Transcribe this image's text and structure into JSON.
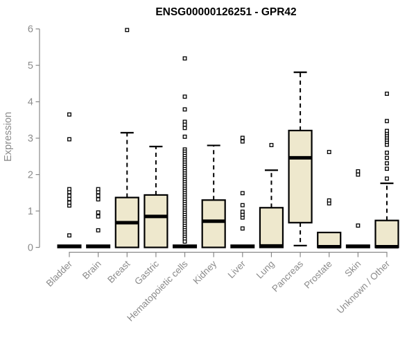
{
  "chart_data": {
    "type": "boxplot",
    "title": "ENSG00000126251 - GPR42",
    "ylabel": "Expression",
    "xlabel": "",
    "ylim": [
      0,
      6
    ],
    "yticks": [
      0,
      1,
      2,
      3,
      4,
      5,
      6
    ],
    "grid": false,
    "legend": "none",
    "colors": {
      "box_fill": "#EEE8CD",
      "box_border": "#000000",
      "median": "#000000",
      "whisker": "#000000",
      "outlier_fill": "#ffffff",
      "outlier_border": "#000000",
      "axis_line": "#888888",
      "axis_text": "#8b8b8b",
      "title_text": "#000000",
      "background": "#ffffff"
    },
    "categories": [
      "Bladder",
      "Brain",
      "Breast",
      "Gastric",
      "Hematopoietic cells",
      "Kidney",
      "Liver",
      "Lung",
      "Pancreas",
      "Prostate",
      "Skin",
      "Unknown / Other"
    ],
    "boxes": [
      {
        "category": "Bladder",
        "q1": 0,
        "median": 0,
        "q3": 0,
        "whisker_low": 0,
        "whisker_high": 0,
        "outliers": [
          0.33,
          1.15,
          1.23,
          1.33,
          1.42,
          1.52,
          1.6,
          2.97,
          3.65
        ]
      },
      {
        "category": "Brain",
        "q1": 0,
        "median": 0,
        "q3": 0,
        "whisker_low": 0,
        "whisker_high": 0,
        "outliers": [
          0.47,
          0.85,
          0.96,
          1.32,
          1.42,
          1.52,
          1.6
        ]
      },
      {
        "category": "Breast",
        "q1": 0,
        "median": 0.68,
        "q3": 1.37,
        "whisker_low": 0,
        "whisker_high": 3.15,
        "outliers": [
          5.97
        ]
      },
      {
        "category": "Gastric",
        "q1": 0,
        "median": 0.85,
        "q3": 1.44,
        "whisker_low": 0,
        "whisker_high": 2.77,
        "outliers": []
      },
      {
        "category": "Hematopoietic cells",
        "q1": 0,
        "median": 0,
        "q3": 0,
        "whisker_low": 0,
        "whisker_high": 0,
        "outliers": [
          5.19,
          4.14,
          3.79,
          3.45,
          3.37,
          3.28,
          3.04,
          2.69,
          2.63,
          2.57,
          2.51,
          2.45,
          2.39,
          2.33,
          2.27,
          2.21,
          2.15,
          2.09,
          2.03,
          1.97,
          1.91,
          1.85,
          1.79,
          1.73,
          1.67,
          1.61,
          1.55,
          1.49,
          1.43,
          1.37,
          1.31,
          1.25,
          1.19,
          1.13,
          1.07,
          1.01,
          0.95,
          0.89,
          0.83,
          0.77,
          0.71,
          0.65,
          0.59,
          0.53,
          0.47,
          0.41,
          0.35,
          0.29,
          0.23,
          0.16
        ]
      },
      {
        "category": "Kidney",
        "q1": 0,
        "median": 0.72,
        "q3": 1.3,
        "whisker_low": 0,
        "whisker_high": 2.8,
        "outliers": []
      },
      {
        "category": "Liver",
        "q1": 0,
        "median": 0,
        "q3": 0,
        "whisker_low": 0,
        "whisker_high": 0,
        "outliers": [
          0.52,
          0.82,
          0.9,
          0.98,
          1.16,
          1.49,
          2.91,
          3.01
        ]
      },
      {
        "category": "Lung",
        "q1": 0,
        "median": 0.04,
        "q3": 1.09,
        "whisker_low": 0,
        "whisker_high": 2.12,
        "outliers": [
          2.81
        ]
      },
      {
        "category": "Pancreas",
        "q1": 0.68,
        "median": 2.46,
        "q3": 3.21,
        "whisker_low": 0.05,
        "whisker_high": 4.81,
        "outliers": []
      },
      {
        "category": "Prostate",
        "q1": 0,
        "median": 0.02,
        "q3": 0.41,
        "whisker_low": 0,
        "whisker_high": 0.41,
        "outliers": [
          1.21,
          1.29,
          2.62
        ]
      },
      {
        "category": "Skin",
        "q1": 0,
        "median": 0,
        "q3": 0,
        "whisker_low": 0,
        "whisker_high": 0,
        "outliers": [
          0.6,
          2.0,
          2.09
        ]
      },
      {
        "category": "Unknown / Other",
        "q1": 0,
        "median": 0.02,
        "q3": 0.74,
        "whisker_low": 0,
        "whisker_high": 1.76,
        "outliers": [
          1.89,
          2.16,
          2.31,
          2.46,
          2.6,
          2.82,
          2.9,
          2.96,
          3.02,
          3.08,
          3.14,
          3.2,
          3.47,
          4.22
        ]
      }
    ]
  }
}
